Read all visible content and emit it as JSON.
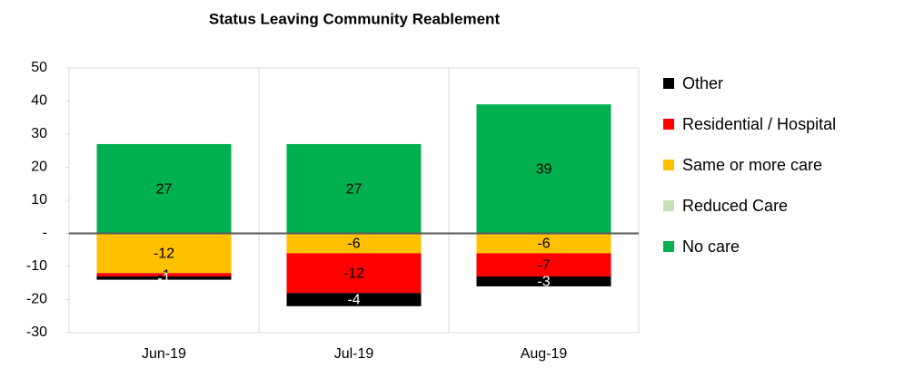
{
  "chart_data": {
    "type": "stacked_bar",
    "title": "Status Leaving Community Reablement",
    "categories": [
      "Jun-19",
      "Jul-19",
      "Aug-19"
    ],
    "series": [
      {
        "name": "No care",
        "color": "#00b050",
        "values": [
          27,
          27,
          39
        ]
      },
      {
        "name": "Reduced Care",
        "color": "#c5e0b4",
        "values": [
          0,
          0,
          0
        ]
      },
      {
        "name": "Same or more care",
        "color": "#ffc000",
        "values": [
          -12,
          -6,
          -6
        ]
      },
      {
        "name": "Residential / Hospital",
        "color": "#ff0000",
        "values": [
          -1,
          -12,
          -7
        ]
      },
      {
        "name": "Other",
        "color": "#000000",
        "values": [
          -1,
          -4,
          -3
        ]
      }
    ],
    "ylim": [
      -30,
      50
    ],
    "yticks": [
      -30,
      -20,
      -10,
      {
        "value": 0,
        "label": "-"
      },
      10,
      20,
      30,
      40,
      50
    ],
    "legend": "right"
  }
}
